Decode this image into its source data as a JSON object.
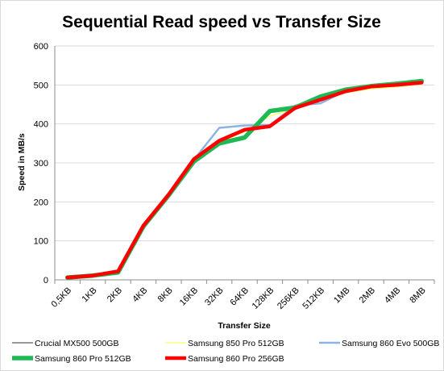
{
  "chart_data": {
    "type": "line",
    "title": "Sequential Read speed vs Transfer Size",
    "xlabel": "Transfer Size",
    "ylabel": "Speed in MB/s",
    "ylim": [
      0,
      600
    ],
    "yticks": [
      0,
      100,
      200,
      300,
      400,
      500,
      600
    ],
    "grid": "horizontal",
    "legend": "bottom",
    "categories": [
      "0,5KB",
      "1KB",
      "2KB",
      "4KB",
      "8KB",
      "16KB",
      "32KB",
      "64KB",
      "128KB",
      "256KB",
      "512KB",
      "1MB",
      "2MB",
      "4MB",
      "8MB"
    ],
    "series": [
      {
        "name": "Crucial MX500 500GB",
        "color": "#595959",
        "width": 1.2,
        "values": [
          6,
          10,
          18,
          135,
          215,
          300,
          350,
          368,
          432,
          440,
          462,
          485,
          495,
          500,
          508
        ]
      },
      {
        "name": "Samsung 850 Pro 512GB",
        "color": "#ffff66",
        "width": 1.2,
        "values": [
          6,
          11,
          20,
          137,
          218,
          306,
          352,
          380,
          420,
          440,
          460,
          480,
          490,
          495,
          502
        ]
      },
      {
        "name": "Samsung 860 Evo 500GB",
        "color": "#8db3e2",
        "width": 2.5,
        "values": [
          7,
          12,
          21,
          138,
          219,
          308,
          390,
          396,
          397,
          447,
          453,
          485,
          497,
          502,
          506
        ]
      },
      {
        "name": "Samsung 860 Pro 512GB",
        "color": "#1db954",
        "width": 5.5,
        "values": [
          6,
          11,
          19,
          137,
          217,
          304,
          350,
          365,
          433,
          442,
          470,
          488,
          497,
          503,
          510
        ]
      },
      {
        "name": "Samsung 860 Pro 256GB",
        "color": "#ff0000",
        "width": 4.5,
        "values": [
          6,
          11,
          22,
          139,
          219,
          310,
          357,
          385,
          394,
          441,
          462,
          484,
          496,
          500,
          506
        ]
      }
    ]
  }
}
